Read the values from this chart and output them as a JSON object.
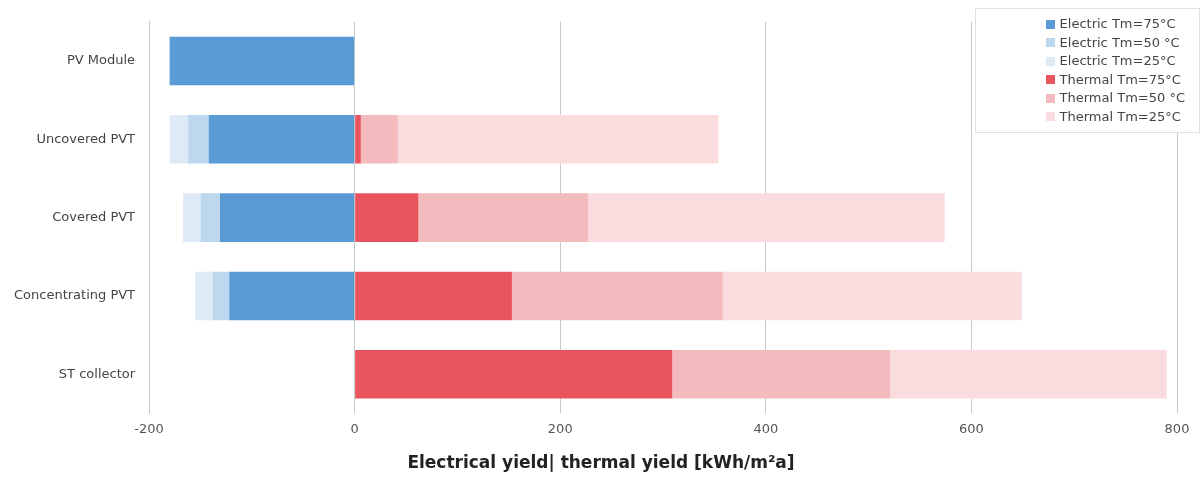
{
  "chart_data": {
    "type": "bar",
    "orientation": "horizontal",
    "stacked": true,
    "xlabel": "Electrical yield| thermal yield [kWh/m²a]",
    "categories": [
      "PV Module",
      "Uncovered PVT",
      "Covered PVT",
      "Concentrating PVT",
      "ST collector"
    ],
    "series": [
      {
        "name": "Electric Tm=75°C",
        "color": "#5b9bd5",
        "values": [
          -180,
          -142,
          -131,
          -122,
          0
        ]
      },
      {
        "name": "Electric Tm=50 °C",
        "color": "#bdd7ee",
        "values": [
          0,
          -20,
          -19,
          -16,
          0
        ]
      },
      {
        "name": "Electric Tm=25°C",
        "color": "#deebf7",
        "values": [
          0,
          -18,
          -17,
          -17,
          0
        ]
      },
      {
        "name": "Thermal Tm=75°C",
        "color": "#e9555f",
        "values": [
          0,
          6,
          62,
          153,
          309
        ]
      },
      {
        "name": "Thermal Tm=50 °C",
        "color": "#f4bbbf",
        "values": [
          0,
          36,
          165,
          205,
          212
        ]
      },
      {
        "name": "Thermal Tm=25°C",
        "color": "#fadcdf",
        "values": [
          0,
          312,
          347,
          291,
          269
        ]
      }
    ],
    "xlim": [
      -200,
      800
    ],
    "xticks": [
      -200,
      0,
      200,
      400,
      600,
      800
    ],
    "grid": "x",
    "legend": "top right"
  }
}
